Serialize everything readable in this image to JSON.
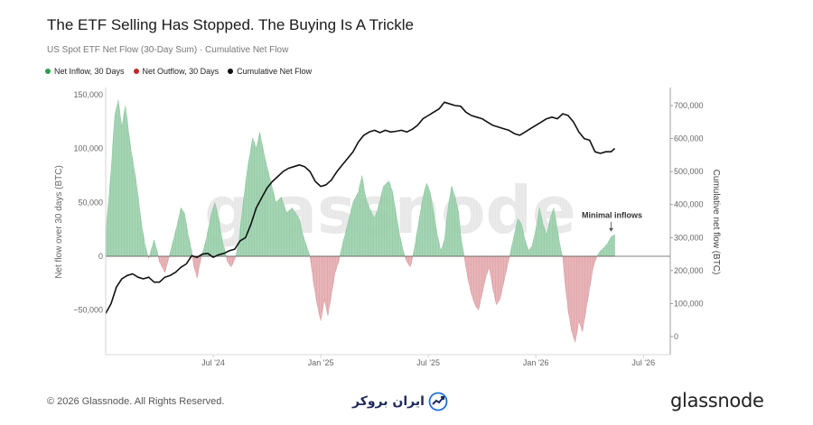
{
  "header": {
    "title": "The ETF Selling Has Stopped. The Buying Is A Trickle",
    "subtitle": "US Spot ETF Net Flow (30-Day Sum) · Cumulative Net Flow"
  },
  "legend": [
    {
      "label": "Net Inflow, 30 Days",
      "color": "#2e9e4f"
    },
    {
      "label": "Net Outflow, 30 Days",
      "color": "#c0272d"
    },
    {
      "label": "Cumulative Net Flow",
      "color": "#111111"
    }
  ],
  "footer": {
    "copyright": "© 2026 Glassnode. All Rights Reserved.",
    "logo": "glassnode",
    "broker_text": "ایران بروکر"
  },
  "watermark": "glassnode",
  "chart_data": {
    "type": "area",
    "x_ticks": [
      "Jul '24",
      "Jan '25",
      "Jul '25",
      "Jan '26",
      "Jul '26"
    ],
    "x_tick_months": [
      6,
      12,
      18,
      24,
      30
    ],
    "x_range_months": [
      0,
      31.5
    ],
    "y_left": {
      "label": "Net flow over 30 days (BTC)",
      "ticks": [
        "150,000",
        "100,000",
        "50,000",
        "0",
        "−50,000"
      ],
      "tick_values": [
        150000,
        100000,
        50000,
        0,
        -50000
      ],
      "range": [
        -80000,
        150000
      ]
    },
    "y_right": {
      "label": "Cumulative net flow (BTC)",
      "ticks": [
        "700,000",
        "600,000",
        "500,000",
        "400,000",
        "300,000",
        "200,000",
        "100,000",
        "0"
      ],
      "tick_values": [
        700000,
        600000,
        500000,
        400000,
        300000,
        200000,
        100000,
        0
      ],
      "range": [
        -20000,
        730000
      ]
    },
    "net_flow_30d": [
      [
        0,
        20000
      ],
      [
        0.3,
        80000
      ],
      [
        0.5,
        130000
      ],
      [
        0.7,
        145000
      ],
      [
        0.9,
        120000
      ],
      [
        1.1,
        140000
      ],
      [
        1.4,
        100000
      ],
      [
        1.7,
        70000
      ],
      [
        2.0,
        30000
      ],
      [
        2.2,
        10000
      ],
      [
        2.4,
        -2000
      ],
      [
        2.7,
        15000
      ],
      [
        2.9,
        3000
      ],
      [
        3.0,
        -5000
      ],
      [
        3.3,
        -15000
      ],
      [
        3.5,
        -3000
      ],
      [
        3.7,
        10000
      ],
      [
        4.0,
        30000
      ],
      [
        4.2,
        45000
      ],
      [
        4.4,
        40000
      ],
      [
        4.6,
        20000
      ],
      [
        4.8,
        5000
      ],
      [
        4.9,
        -8000
      ],
      [
        5.1,
        -20000
      ],
      [
        5.3,
        -3000
      ],
      [
        5.6,
        15000
      ],
      [
        5.9,
        40000
      ],
      [
        6.1,
        50000
      ],
      [
        6.3,
        35000
      ],
      [
        6.5,
        15000
      ],
      [
        6.7,
        2000
      ],
      [
        6.8,
        -5000
      ],
      [
        7.0,
        -10000
      ],
      [
        7.2,
        -3000
      ],
      [
        7.4,
        10000
      ],
      [
        7.6,
        40000
      ],
      [
        7.9,
        80000
      ],
      [
        8.2,
        110000
      ],
      [
        8.4,
        100000
      ],
      [
        8.6,
        115000
      ],
      [
        8.9,
        90000
      ],
      [
        9.2,
        70000
      ],
      [
        9.5,
        50000
      ],
      [
        9.8,
        55000
      ],
      [
        10.1,
        40000
      ],
      [
        10.4,
        45000
      ],
      [
        10.8,
        35000
      ],
      [
        11.0,
        20000
      ],
      [
        11.2,
        10000
      ],
      [
        11.4,
        0
      ],
      [
        11.6,
        -25000
      ],
      [
        11.8,
        -45000
      ],
      [
        12.0,
        -60000
      ],
      [
        12.2,
        -40000
      ],
      [
        12.4,
        -55000
      ],
      [
        12.6,
        -35000
      ],
      [
        12.8,
        -15000
      ],
      [
        13.0,
        -5000
      ],
      [
        13.2,
        10000
      ],
      [
        13.5,
        30000
      ],
      [
        13.8,
        50000
      ],
      [
        14.1,
        60000
      ],
      [
        14.3,
        75000
      ],
      [
        14.5,
        55000
      ],
      [
        14.7,
        45000
      ],
      [
        15.0,
        35000
      ],
      [
        15.2,
        45000
      ],
      [
        15.5,
        65000
      ],
      [
        15.8,
        70000
      ],
      [
        16.0,
        60000
      ],
      [
        16.2,
        40000
      ],
      [
        16.4,
        20000
      ],
      [
        16.6,
        5000
      ],
      [
        16.8,
        -5000
      ],
      [
        17.0,
        -10000
      ],
      [
        17.2,
        5000
      ],
      [
        17.4,
        25000
      ],
      [
        17.7,
        55000
      ],
      [
        17.9,
        68000
      ],
      [
        18.1,
        60000
      ],
      [
        18.3,
        40000
      ],
      [
        18.5,
        20000
      ],
      [
        18.7,
        5000
      ],
      [
        18.9,
        15000
      ],
      [
        19.1,
        45000
      ],
      [
        19.3,
        65000
      ],
      [
        19.5,
        55000
      ],
      [
        19.7,
        40000
      ],
      [
        19.8,
        20000
      ],
      [
        20.0,
        0
      ],
      [
        20.2,
        -20000
      ],
      [
        20.4,
        -35000
      ],
      [
        20.6,
        -45000
      ],
      [
        20.8,
        -50000
      ],
      [
        21.0,
        -35000
      ],
      [
        21.2,
        -20000
      ],
      [
        21.4,
        -10000
      ],
      [
        21.6,
        -30000
      ],
      [
        21.8,
        -45000
      ],
      [
        22.0,
        -40000
      ],
      [
        22.2,
        -25000
      ],
      [
        22.4,
        -10000
      ],
      [
        22.6,
        5000
      ],
      [
        22.8,
        20000
      ],
      [
        23.0,
        35000
      ],
      [
        23.2,
        30000
      ],
      [
        23.4,
        15000
      ],
      [
        23.6,
        5000
      ],
      [
        23.8,
        10000
      ],
      [
        24.0,
        25000
      ],
      [
        24.2,
        45000
      ],
      [
        24.4,
        30000
      ],
      [
        24.6,
        20000
      ],
      [
        24.8,
        35000
      ],
      [
        25.0,
        45000
      ],
      [
        25.2,
        25000
      ],
      [
        25.4,
        5000
      ],
      [
        25.5,
        0
      ],
      [
        25.6,
        -20000
      ],
      [
        25.8,
        -50000
      ],
      [
        26.0,
        -70000
      ],
      [
        26.2,
        -80000
      ],
      [
        26.4,
        -60000
      ],
      [
        26.6,
        -70000
      ],
      [
        26.8,
        -50000
      ],
      [
        27.0,
        -30000
      ],
      [
        27.2,
        -10000
      ],
      [
        27.4,
        0
      ],
      [
        27.6,
        5000
      ],
      [
        27.8,
        8000
      ],
      [
        28.0,
        12000
      ],
      [
        28.2,
        18000
      ],
      [
        28.4,
        20000
      ]
    ],
    "cumulative_net_flow": [
      [
        0,
        70000
      ],
      [
        0.3,
        100000
      ],
      [
        0.6,
        150000
      ],
      [
        0.9,
        175000
      ],
      [
        1.2,
        185000
      ],
      [
        1.5,
        190000
      ],
      [
        1.8,
        180000
      ],
      [
        2.1,
        175000
      ],
      [
        2.4,
        180000
      ],
      [
        2.7,
        165000
      ],
      [
        3.0,
        165000
      ],
      [
        3.3,
        180000
      ],
      [
        3.6,
        185000
      ],
      [
        3.9,
        195000
      ],
      [
        4.2,
        210000
      ],
      [
        4.5,
        220000
      ],
      [
        4.8,
        245000
      ],
      [
        5.1,
        240000
      ],
      [
        5.4,
        250000
      ],
      [
        5.7,
        252000
      ],
      [
        6.0,
        240000
      ],
      [
        6.3,
        248000
      ],
      [
        6.6,
        252000
      ],
      [
        6.9,
        260000
      ],
      [
        7.2,
        265000
      ],
      [
        7.5,
        290000
      ],
      [
        7.8,
        300000
      ],
      [
        8.1,
        340000
      ],
      [
        8.4,
        390000
      ],
      [
        8.7,
        420000
      ],
      [
        9.0,
        450000
      ],
      [
        9.3,
        470000
      ],
      [
        9.6,
        485000
      ],
      [
        9.9,
        500000
      ],
      [
        10.2,
        510000
      ],
      [
        10.5,
        515000
      ],
      [
        10.8,
        520000
      ],
      [
        11.1,
        515000
      ],
      [
        11.4,
        500000
      ],
      [
        11.7,
        470000
      ],
      [
        12.0,
        455000
      ],
      [
        12.3,
        460000
      ],
      [
        12.6,
        475000
      ],
      [
        12.9,
        500000
      ],
      [
        13.2,
        520000
      ],
      [
        13.5,
        540000
      ],
      [
        13.8,
        560000
      ],
      [
        14.1,
        590000
      ],
      [
        14.4,
        610000
      ],
      [
        14.7,
        620000
      ],
      [
        15.0,
        625000
      ],
      [
        15.3,
        618000
      ],
      [
        15.6,
        625000
      ],
      [
        15.9,
        620000
      ],
      [
        16.2,
        622000
      ],
      [
        16.5,
        625000
      ],
      [
        16.8,
        620000
      ],
      [
        17.1,
        628000
      ],
      [
        17.4,
        640000
      ],
      [
        17.7,
        660000
      ],
      [
        18.0,
        670000
      ],
      [
        18.3,
        680000
      ],
      [
        18.6,
        690000
      ],
      [
        18.9,
        710000
      ],
      [
        19.2,
        705000
      ],
      [
        19.5,
        700000
      ],
      [
        19.8,
        698000
      ],
      [
        20.1,
        680000
      ],
      [
        20.4,
        670000
      ],
      [
        20.7,
        665000
      ],
      [
        21.0,
        660000
      ],
      [
        21.3,
        650000
      ],
      [
        21.6,
        640000
      ],
      [
        21.9,
        635000
      ],
      [
        22.2,
        630000
      ],
      [
        22.5,
        625000
      ],
      [
        22.8,
        615000
      ],
      [
        23.1,
        610000
      ],
      [
        23.4,
        620000
      ],
      [
        23.7,
        630000
      ],
      [
        24.0,
        640000
      ],
      [
        24.3,
        650000
      ],
      [
        24.6,
        660000
      ],
      [
        24.9,
        665000
      ],
      [
        25.2,
        660000
      ],
      [
        25.5,
        675000
      ],
      [
        25.8,
        670000
      ],
      [
        26.1,
        650000
      ],
      [
        26.4,
        620000
      ],
      [
        26.7,
        600000
      ],
      [
        27.0,
        595000
      ],
      [
        27.3,
        560000
      ],
      [
        27.6,
        555000
      ],
      [
        27.9,
        560000
      ],
      [
        28.2,
        560000
      ],
      [
        28.4,
        570000
      ]
    ],
    "annotations": [
      {
        "text": "Minimal inflows",
        "x_month": 28.2,
        "y_value": 22000
      }
    ]
  }
}
